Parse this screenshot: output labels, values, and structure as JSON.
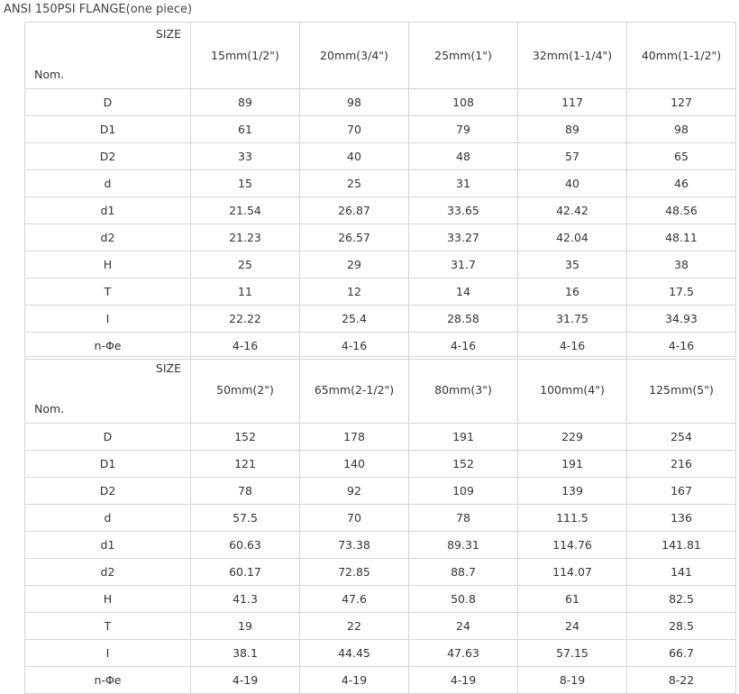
{
  "title": "ANSI 150PSI FLANGE(one piece)",
  "tables": [
    {
      "size_label": "SIZE",
      "nom_label": "Nom.",
      "sizes": [
        "15mm(1/2\")",
        "20mm(3/4\")",
        "25mm(1\")",
        "32mm(1-1/4\")",
        "40mm(1-1/2\")"
      ],
      "rows": [
        {
          "label": "D",
          "values": [
            "89",
            "98",
            "108",
            "117",
            "127"
          ]
        },
        {
          "label": "D1",
          "values": [
            "61",
            "70",
            "79",
            "89",
            "98"
          ]
        },
        {
          "label": "D2",
          "values": [
            "33",
            "40",
            "48",
            "57",
            "65"
          ]
        },
        {
          "label": "d",
          "values": [
            "15",
            "25",
            "31",
            "40",
            "46"
          ]
        },
        {
          "label": "d1",
          "values": [
            "21.54",
            "26.87",
            "33.65",
            "42.42",
            "48.56"
          ]
        },
        {
          "label": "d2",
          "values": [
            "21.23",
            "26.57",
            "33.27",
            "42.04",
            "48.11"
          ]
        },
        {
          "label": "H",
          "values": [
            "25",
            "29",
            "31.7",
            "35",
            "38"
          ]
        },
        {
          "label": "T",
          "values": [
            "11",
            "12",
            "14",
            "16",
            "17.5"
          ]
        },
        {
          "label": "I",
          "values": [
            "22.22",
            "25.4",
            "28.58",
            "31.75",
            "34.93"
          ]
        },
        {
          "label": "n-Φe",
          "values": [
            "4-16",
            "4-16",
            "4-16",
            "4-16",
            "4-16"
          ]
        }
      ]
    },
    {
      "size_label": "SIZE",
      "nom_label": "Nom.",
      "sizes": [
        "50mm(2\")",
        "65mm(2-1/2\")",
        "80mm(3\")",
        "100mm(4\")",
        "125mm(5\")"
      ],
      "rows": [
        {
          "label": "D",
          "values": [
            "152",
            "178",
            "191",
            "229",
            "254"
          ]
        },
        {
          "label": "D1",
          "values": [
            "121",
            "140",
            "152",
            "191",
            "216"
          ]
        },
        {
          "label": "D2",
          "values": [
            "78",
            "92",
            "109",
            "139",
            "167"
          ]
        },
        {
          "label": "d",
          "values": [
            "57.5",
            "70",
            "78",
            "111.5",
            "136"
          ]
        },
        {
          "label": "d1",
          "values": [
            "60.63",
            "73.38",
            "89.31",
            "114.76",
            "141.81"
          ]
        },
        {
          "label": "d2",
          "values": [
            "60.17",
            "72.85",
            "88.7",
            "114.07",
            "141"
          ]
        },
        {
          "label": "H",
          "values": [
            "41.3",
            "47.6",
            "50.8",
            "61",
            "82.5"
          ]
        },
        {
          "label": "T",
          "values": [
            "19",
            "22",
            "24",
            "24",
            "28.5"
          ]
        },
        {
          "label": "I",
          "values": [
            "38.1",
            "44.45",
            "47.63",
            "57.15",
            "66.7"
          ]
        },
        {
          "label": "n-Φe",
          "values": [
            "4-19",
            "4-19",
            "4-19",
            "8-19",
            "8-22"
          ]
        }
      ]
    }
  ]
}
